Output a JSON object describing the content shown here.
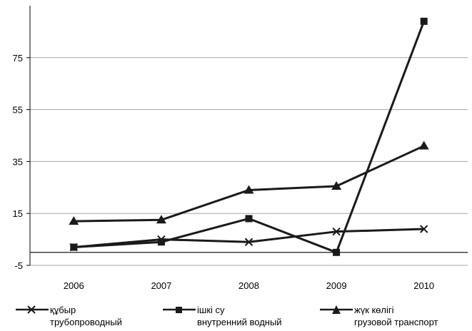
{
  "chart_data": {
    "type": "line",
    "title": "",
    "xlabel": "",
    "ylabel": "",
    "categories": [
      "2006",
      "2007",
      "2008",
      "2009",
      "2010"
    ],
    "ylim": [
      -5,
      95
    ],
    "yticks": [
      "-5",
      "15",
      "35",
      "55",
      "75"
    ],
    "ytick_values": [
      -5,
      15,
      35,
      55,
      75
    ],
    "grid": "horizontal",
    "legend_position": "bottom",
    "series": [
      {
        "name_line1": "құбыр",
        "name_line2": "трубопроводный",
        "marker": "x",
        "color": "#1a1a1a",
        "values": [
          2,
          5,
          4,
          8,
          9
        ]
      },
      {
        "name_line1": "ішкі су",
        "name_line2": "внутренний водный",
        "marker": "square",
        "color": "#1a1a1a",
        "values": [
          2,
          4,
          13,
          0,
          89
        ]
      },
      {
        "name_line1": "жүк көлігі",
        "name_line2": "грузовой транспорт",
        "marker": "triangle",
        "color": "#1a1a1a",
        "values": [
          12,
          12.5,
          24,
          25.5,
          41
        ]
      }
    ]
  }
}
